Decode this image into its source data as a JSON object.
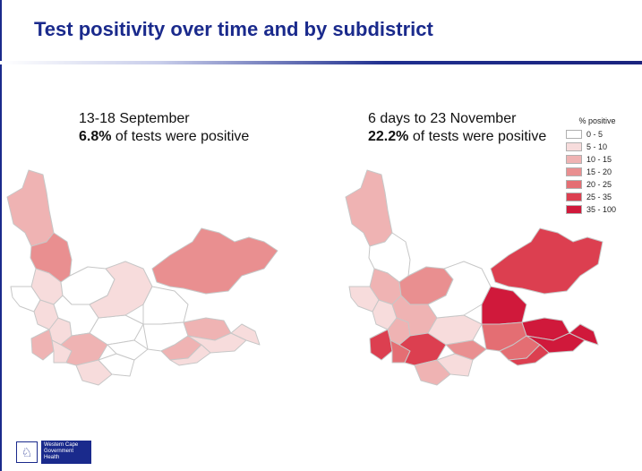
{
  "slide": {
    "title": "Test positivity over time and by subdistrict"
  },
  "panels": [
    {
      "period": "13-18 September",
      "positivity_value": "6.8%",
      "positivity_text": " of tests were positive"
    },
    {
      "period": "6 days to 23 November",
      "positivity_value": "22.2%",
      "positivity_text": " of tests were positive"
    }
  ],
  "legend": {
    "title": "% positive",
    "items": [
      {
        "label": "0 - 5",
        "color": "#ffffff"
      },
      {
        "label": "5 - 10",
        "color": "#f7dcdc"
      },
      {
        "label": "10 - 15",
        "color": "#efb3b3"
      },
      {
        "label": "15 - 20",
        "color": "#e98f90"
      },
      {
        "label": "20 - 25",
        "color": "#e46e73"
      },
      {
        "label": "25 - 35",
        "color": "#dc3f50"
      },
      {
        "label": "35 - 100",
        "color": "#d0193b"
      }
    ]
  },
  "footer": {
    "logo_line1": "Western Cape",
    "logo_line2": "Government",
    "logo_line3": "Health"
  }
}
